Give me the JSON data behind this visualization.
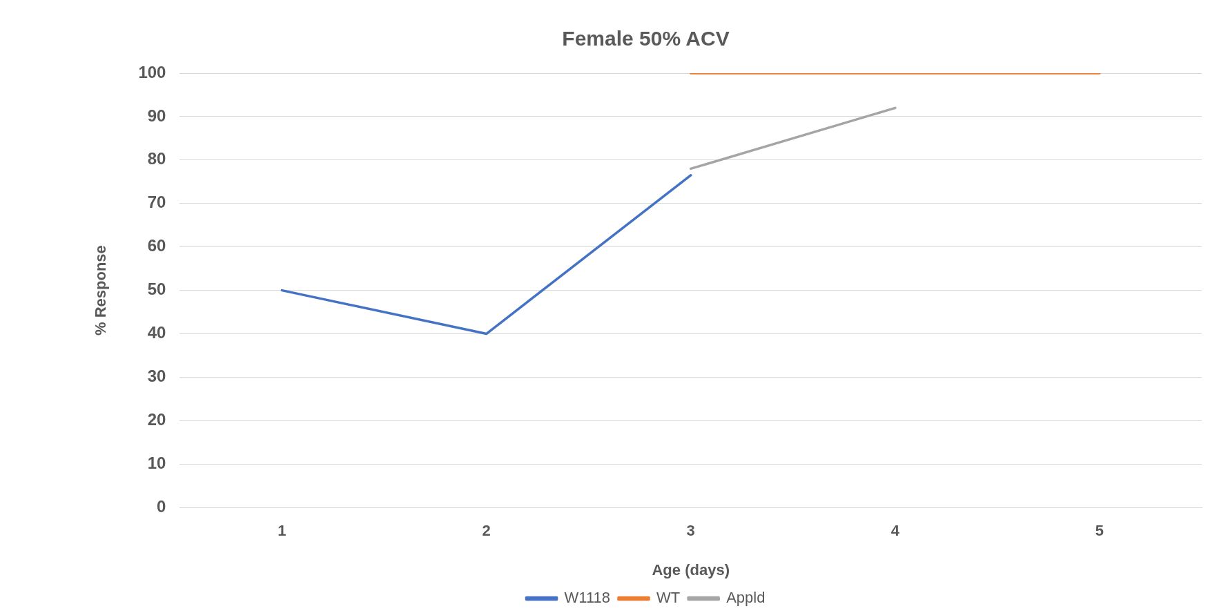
{
  "chart_data": {
    "type": "line",
    "title": "Female 50% ACV",
    "xlabel": "Age (days)",
    "ylabel": "% Response",
    "categories": [
      "1",
      "2",
      "3",
      "4",
      "5"
    ],
    "series": [
      {
        "name": "W1118",
        "color": "#4472c4",
        "values": [
          50,
          40,
          76.5,
          null,
          null
        ]
      },
      {
        "name": "WT",
        "color": "#ed7d31",
        "values": [
          null,
          null,
          100,
          100,
          100
        ]
      },
      {
        "name": "Appld",
        "color": "#a5a5a5",
        "values": [
          null,
          null,
          78,
          92,
          null
        ]
      }
    ],
    "ylim": [
      0,
      100
    ],
    "yticks": [
      0,
      10,
      20,
      30,
      40,
      50,
      60,
      70,
      80,
      90,
      100
    ],
    "grid": "y",
    "legend": "bottom",
    "marker": "none",
    "line_style": "solid"
  }
}
